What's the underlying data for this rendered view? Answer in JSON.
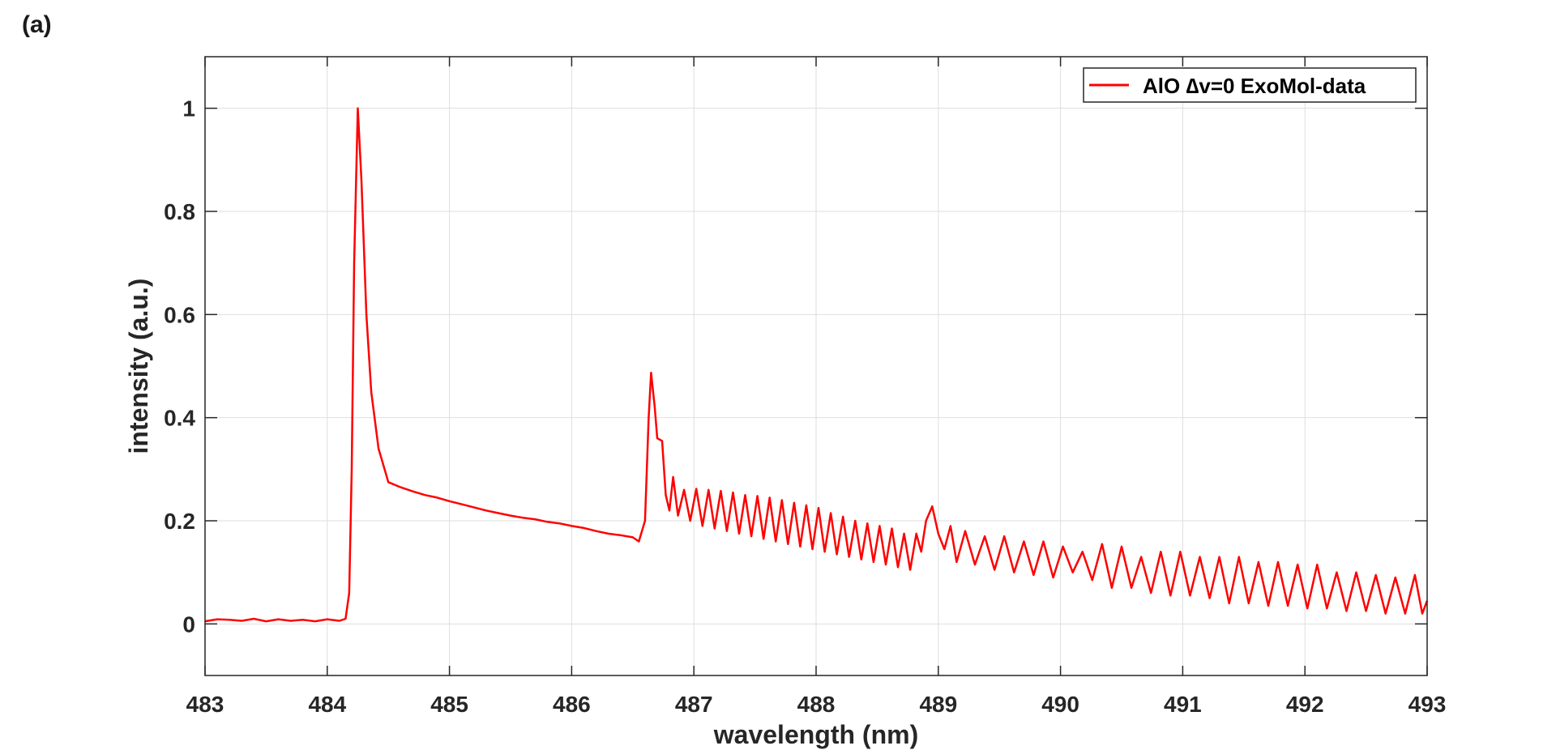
{
  "panel_label": "(a)",
  "chart_data": {
    "type": "line",
    "title": "",
    "xlabel": "wavelength (nm)",
    "ylabel": "intensity (a.u.)",
    "xlim": [
      483,
      493
    ],
    "ylim": [
      -0.1,
      1.1
    ],
    "xticks": [
      483,
      484,
      485,
      486,
      487,
      488,
      489,
      490,
      491,
      492,
      493
    ],
    "yticks": [
      0,
      0.2,
      0.4,
      0.6,
      0.8,
      1
    ],
    "ytick_labels": [
      "0",
      "0.2",
      "0.4",
      "0.6",
      "0.8",
      "1"
    ],
    "grid": true,
    "legend_position": "top-right",
    "series": [
      {
        "name": "AlO ∆v=0 ExoMol-data",
        "color": "#ff0000",
        "points": [
          [
            483.0,
            0.005
          ],
          [
            483.1,
            0.009
          ],
          [
            483.2,
            0.008
          ],
          [
            483.3,
            0.006
          ],
          [
            483.4,
            0.01
          ],
          [
            483.5,
            0.005
          ],
          [
            483.6,
            0.009
          ],
          [
            483.7,
            0.006
          ],
          [
            483.8,
            0.008
          ],
          [
            483.9,
            0.005
          ],
          [
            484.0,
            0.009
          ],
          [
            484.1,
            0.006
          ],
          [
            484.15,
            0.01
          ],
          [
            484.18,
            0.06
          ],
          [
            484.2,
            0.3
          ],
          [
            484.22,
            0.7
          ],
          [
            484.25,
            1.0
          ],
          [
            484.28,
            0.86
          ],
          [
            484.32,
            0.6
          ],
          [
            484.36,
            0.45
          ],
          [
            484.42,
            0.34
          ],
          [
            484.5,
            0.275
          ],
          [
            484.6,
            0.265
          ],
          [
            484.7,
            0.257
          ],
          [
            484.8,
            0.25
          ],
          [
            484.9,
            0.245
          ],
          [
            485.0,
            0.238
          ],
          [
            485.1,
            0.232
          ],
          [
            485.2,
            0.226
          ],
          [
            485.3,
            0.22
          ],
          [
            485.4,
            0.215
          ],
          [
            485.5,
            0.21
          ],
          [
            485.6,
            0.206
          ],
          [
            485.7,
            0.203
          ],
          [
            485.8,
            0.198
          ],
          [
            485.9,
            0.195
          ],
          [
            486.0,
            0.19
          ],
          [
            486.1,
            0.186
          ],
          [
            486.2,
            0.18
          ],
          [
            486.3,
            0.175
          ],
          [
            486.4,
            0.172
          ],
          [
            486.5,
            0.168
          ],
          [
            486.55,
            0.16
          ],
          [
            486.6,
            0.2
          ],
          [
            486.63,
            0.4
          ],
          [
            486.65,
            0.487
          ],
          [
            486.68,
            0.42
          ],
          [
            486.7,
            0.36
          ],
          [
            486.74,
            0.355
          ],
          [
            486.77,
            0.25
          ],
          [
            486.8,
            0.22
          ],
          [
            486.83,
            0.285
          ],
          [
            486.87,
            0.21
          ],
          [
            486.92,
            0.26
          ],
          [
            486.97,
            0.2
          ],
          [
            487.02,
            0.262
          ],
          [
            487.07,
            0.19
          ],
          [
            487.12,
            0.26
          ],
          [
            487.17,
            0.185
          ],
          [
            487.22,
            0.258
          ],
          [
            487.27,
            0.18
          ],
          [
            487.32,
            0.255
          ],
          [
            487.37,
            0.175
          ],
          [
            487.42,
            0.25
          ],
          [
            487.47,
            0.17
          ],
          [
            487.52,
            0.248
          ],
          [
            487.57,
            0.165
          ],
          [
            487.62,
            0.245
          ],
          [
            487.67,
            0.16
          ],
          [
            487.72,
            0.24
          ],
          [
            487.77,
            0.155
          ],
          [
            487.82,
            0.235
          ],
          [
            487.87,
            0.15
          ],
          [
            487.92,
            0.23
          ],
          [
            487.97,
            0.145
          ],
          [
            488.02,
            0.225
          ],
          [
            488.07,
            0.14
          ],
          [
            488.12,
            0.215
          ],
          [
            488.17,
            0.135
          ],
          [
            488.22,
            0.208
          ],
          [
            488.27,
            0.13
          ],
          [
            488.32,
            0.2
          ],
          [
            488.37,
            0.125
          ],
          [
            488.42,
            0.195
          ],
          [
            488.47,
            0.12
          ],
          [
            488.52,
            0.19
          ],
          [
            488.57,
            0.115
          ],
          [
            488.62,
            0.185
          ],
          [
            488.67,
            0.11
          ],
          [
            488.72,
            0.175
          ],
          [
            488.77,
            0.105
          ],
          [
            488.82,
            0.175
          ],
          [
            488.86,
            0.14
          ],
          [
            488.9,
            0.2
          ],
          [
            488.95,
            0.228
          ],
          [
            489.0,
            0.175
          ],
          [
            489.05,
            0.145
          ],
          [
            489.1,
            0.19
          ],
          [
            489.15,
            0.12
          ],
          [
            489.22,
            0.18
          ],
          [
            489.3,
            0.115
          ],
          [
            489.38,
            0.17
          ],
          [
            489.46,
            0.105
          ],
          [
            489.54,
            0.17
          ],
          [
            489.62,
            0.1
          ],
          [
            489.7,
            0.16
          ],
          [
            489.78,
            0.095
          ],
          [
            489.86,
            0.16
          ],
          [
            489.94,
            0.09
          ],
          [
            490.02,
            0.15
          ],
          [
            490.1,
            0.1
          ],
          [
            490.18,
            0.14
          ],
          [
            490.26,
            0.085
          ],
          [
            490.34,
            0.155
          ],
          [
            490.42,
            0.07
          ],
          [
            490.5,
            0.15
          ],
          [
            490.58,
            0.07
          ],
          [
            490.66,
            0.13
          ],
          [
            490.74,
            0.06
          ],
          [
            490.82,
            0.14
          ],
          [
            490.9,
            0.055
          ],
          [
            490.98,
            0.14
          ],
          [
            491.06,
            0.055
          ],
          [
            491.14,
            0.13
          ],
          [
            491.22,
            0.05
          ],
          [
            491.3,
            0.13
          ],
          [
            491.38,
            0.04
          ],
          [
            491.46,
            0.13
          ],
          [
            491.54,
            0.04
          ],
          [
            491.62,
            0.12
          ],
          [
            491.7,
            0.035
          ],
          [
            491.78,
            0.12
          ],
          [
            491.86,
            0.035
          ],
          [
            491.94,
            0.115
          ],
          [
            492.02,
            0.03
          ],
          [
            492.1,
            0.115
          ],
          [
            492.18,
            0.03
          ],
          [
            492.26,
            0.1
          ],
          [
            492.34,
            0.025
          ],
          [
            492.42,
            0.1
          ],
          [
            492.5,
            0.025
          ],
          [
            492.58,
            0.095
          ],
          [
            492.66,
            0.02
          ],
          [
            492.74,
            0.09
          ],
          [
            492.82,
            0.02
          ],
          [
            492.9,
            0.095
          ],
          [
            492.96,
            0.02
          ],
          [
            493.0,
            0.045
          ]
        ]
      }
    ]
  }
}
